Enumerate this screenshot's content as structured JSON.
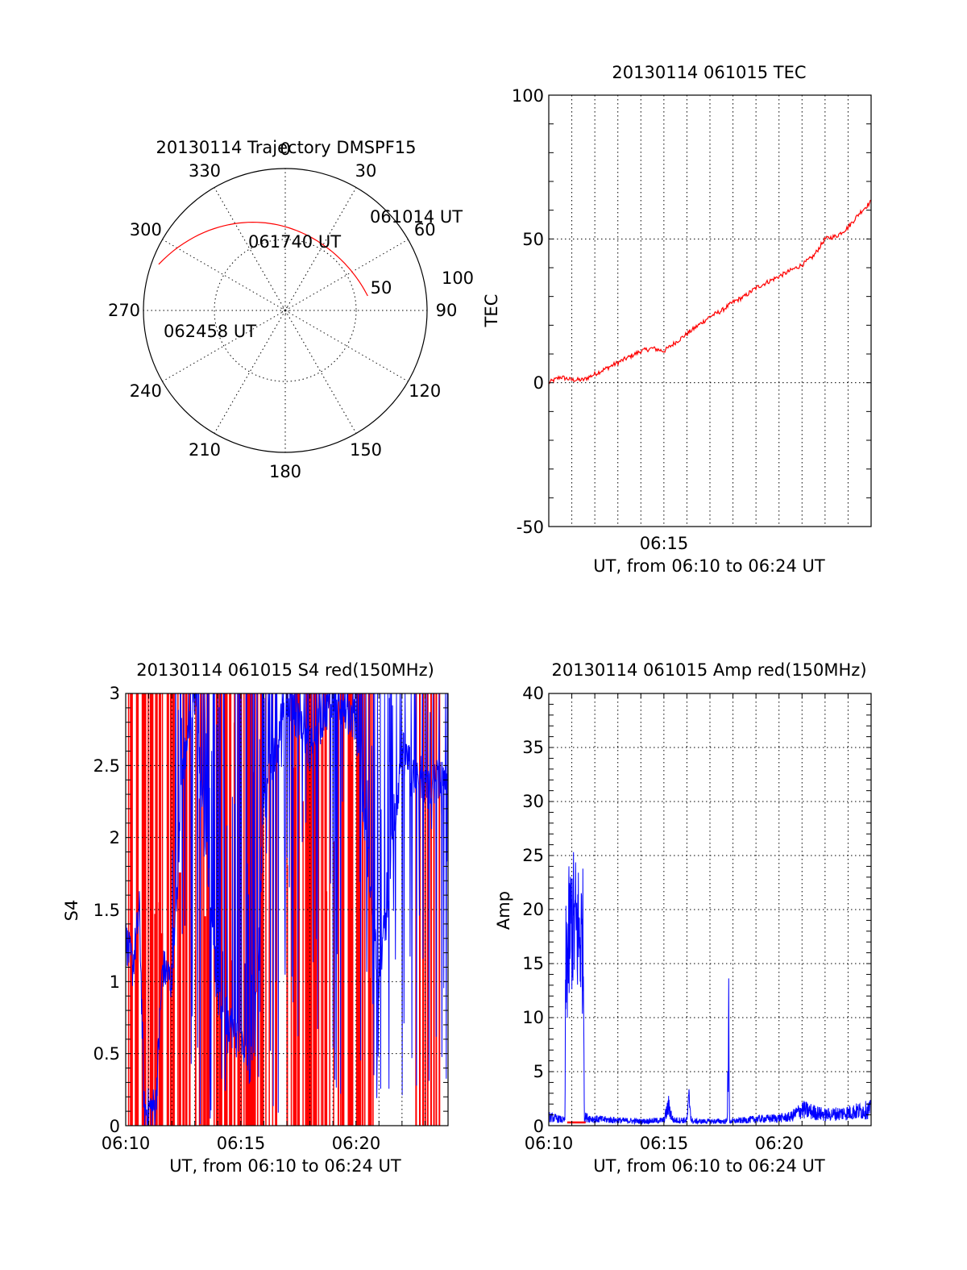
{
  "polar": {
    "title": "20130114 Trajectory DMSPF15",
    "azimuth_labels": [
      "0",
      "30",
      "60",
      "90",
      "120",
      "150",
      "180",
      "210",
      "240",
      "270",
      "300",
      "330"
    ],
    "radial_labels": [
      "50",
      "100"
    ],
    "elevation_rings": [
      50
    ],
    "track_color": "#ff0000",
    "track": [
      {
        "label": "061014 UT",
        "az": 80,
        "zen": 59
      },
      {
        "label": "061740 UT",
        "az": 330,
        "zen": 59
      },
      {
        "label": "062458 UT",
        "az": 290,
        "zen": 95
      }
    ]
  },
  "tec": {
    "title": "20130114 061015 TEC",
    "xlabel": "UT, from 06:10 to 06:24 UT",
    "ylabel": "TEC",
    "yticks": [
      "100",
      "50",
      "0",
      "-50"
    ],
    "xticks": [
      "06:15"
    ]
  },
  "s4": {
    "title": "20130114 061015 S4 red(150MHz)",
    "xlabel": "UT, from 06:10 to 06:24 UT",
    "ylabel": "S4",
    "yticks": [
      "3",
      "2.5",
      "2",
      "1.5",
      "1",
      "0.5",
      "0"
    ],
    "xticks": [
      "06:10",
      "06:15",
      "06:20"
    ]
  },
  "amp": {
    "title": "20130114 061015 Amp red(150MHz)",
    "xlabel": "UT, from 06:10 to 06:24 UT",
    "ylabel": "Amp",
    "yticks": [
      "40",
      "35",
      "30",
      "25",
      "20",
      "15",
      "10",
      "5",
      "0"
    ],
    "xticks": [
      "06:10",
      "06:15",
      "06:20"
    ]
  },
  "chart_data": [
    {
      "type": "line",
      "title": "20130114 061015 TEC",
      "xlabel": "UT, from 06:10 to 06:24 UT",
      "ylabel": "TEC",
      "xlim": [
        10.0,
        24.0
      ],
      "ylim": [
        -50,
        100
      ],
      "grid": true,
      "series": [
        {
          "color": "#ff0000",
          "x": [
            10.0,
            10.5,
            11.0,
            11.5,
            12.0,
            12.5,
            13.0,
            13.5,
            14.0,
            14.5,
            15.0,
            15.5,
            16.0,
            16.5,
            17.0,
            17.5,
            18.0,
            18.5,
            19.0,
            19.5,
            20.0,
            20.5,
            21.0,
            21.5,
            22.0,
            22.5,
            23.0,
            23.5,
            24.0
          ],
          "values": [
            0,
            2,
            1,
            1,
            3,
            5,
            7,
            9,
            11,
            12,
            11,
            14,
            17,
            20,
            23,
            25,
            28,
            30,
            33,
            35,
            37,
            39,
            41,
            44,
            50,
            51,
            54,
            59,
            63
          ]
        }
      ]
    },
    {
      "type": "line",
      "title": "20130114 061015 S4 red(150MHz)",
      "xlabel": "UT, from 06:10 to 06:24 UT",
      "ylabel": "S4",
      "xlim": [
        10.0,
        24.0
      ],
      "ylim": [
        0,
        3
      ],
      "grid": true,
      "series": [
        {
          "color": "#ff0000",
          "x": [
            10.0,
            24.0
          ],
          "values": [
            0,
            3
          ]
        },
        {
          "color": "#0000ff",
          "x": [
            10.0,
            10.3,
            10.6,
            10.8,
            11.0,
            11.3,
            11.6,
            12.0,
            12.5,
            13.0,
            14.0,
            15.0,
            15.5,
            16.0,
            17.0,
            18.0,
            19.0,
            20.0,
            21.0,
            22.0,
            23.0,
            24.0
          ],
          "values": [
            1.3,
            1.1,
            1.5,
            0.1,
            0.12,
            0.13,
            1.1,
            1.0,
            2.5,
            3.0,
            0.9,
            0.55,
            0.4,
            2.2,
            3.0,
            2.6,
            3.0,
            2.8,
            1.0,
            2.6,
            2.3,
            2.5
          ]
        }
      ]
    },
    {
      "type": "line",
      "title": "20130114 061015 Amp red(150MHz)",
      "xlabel": "UT, from 06:10 to 06:24 UT",
      "ylabel": "Amp",
      "xlim": [
        10.0,
        24.0
      ],
      "ylim": [
        0,
        40
      ],
      "grid": true,
      "series": [
        {
          "color": "#0000ff",
          "x": [
            10.0,
            10.7,
            10.75,
            11.0,
            11.5,
            11.55,
            12.0,
            13.0,
            14.0,
            15.0,
            15.2,
            15.4,
            16.0,
            16.1,
            16.2,
            17.0,
            17.75,
            17.8,
            17.85,
            18.5,
            19.0,
            20.0,
            20.5,
            21.0,
            22.0,
            23.0,
            24.0
          ],
          "values": [
            0.8,
            0.5,
            18,
            22,
            20,
            0.8,
            0.6,
            0.5,
            0.4,
            0.5,
            1.8,
            0.5,
            0.5,
            2.6,
            0.4,
            0.4,
            0.4,
            13,
            0.4,
            0.5,
            0.6,
            0.7,
            0.8,
            1.5,
            1.0,
            1.2,
            1.5
          ]
        },
        {
          "color": "#ff0000",
          "x": [
            10.8,
            11.6
          ],
          "values": [
            0.3,
            0.3
          ]
        }
      ]
    }
  ]
}
